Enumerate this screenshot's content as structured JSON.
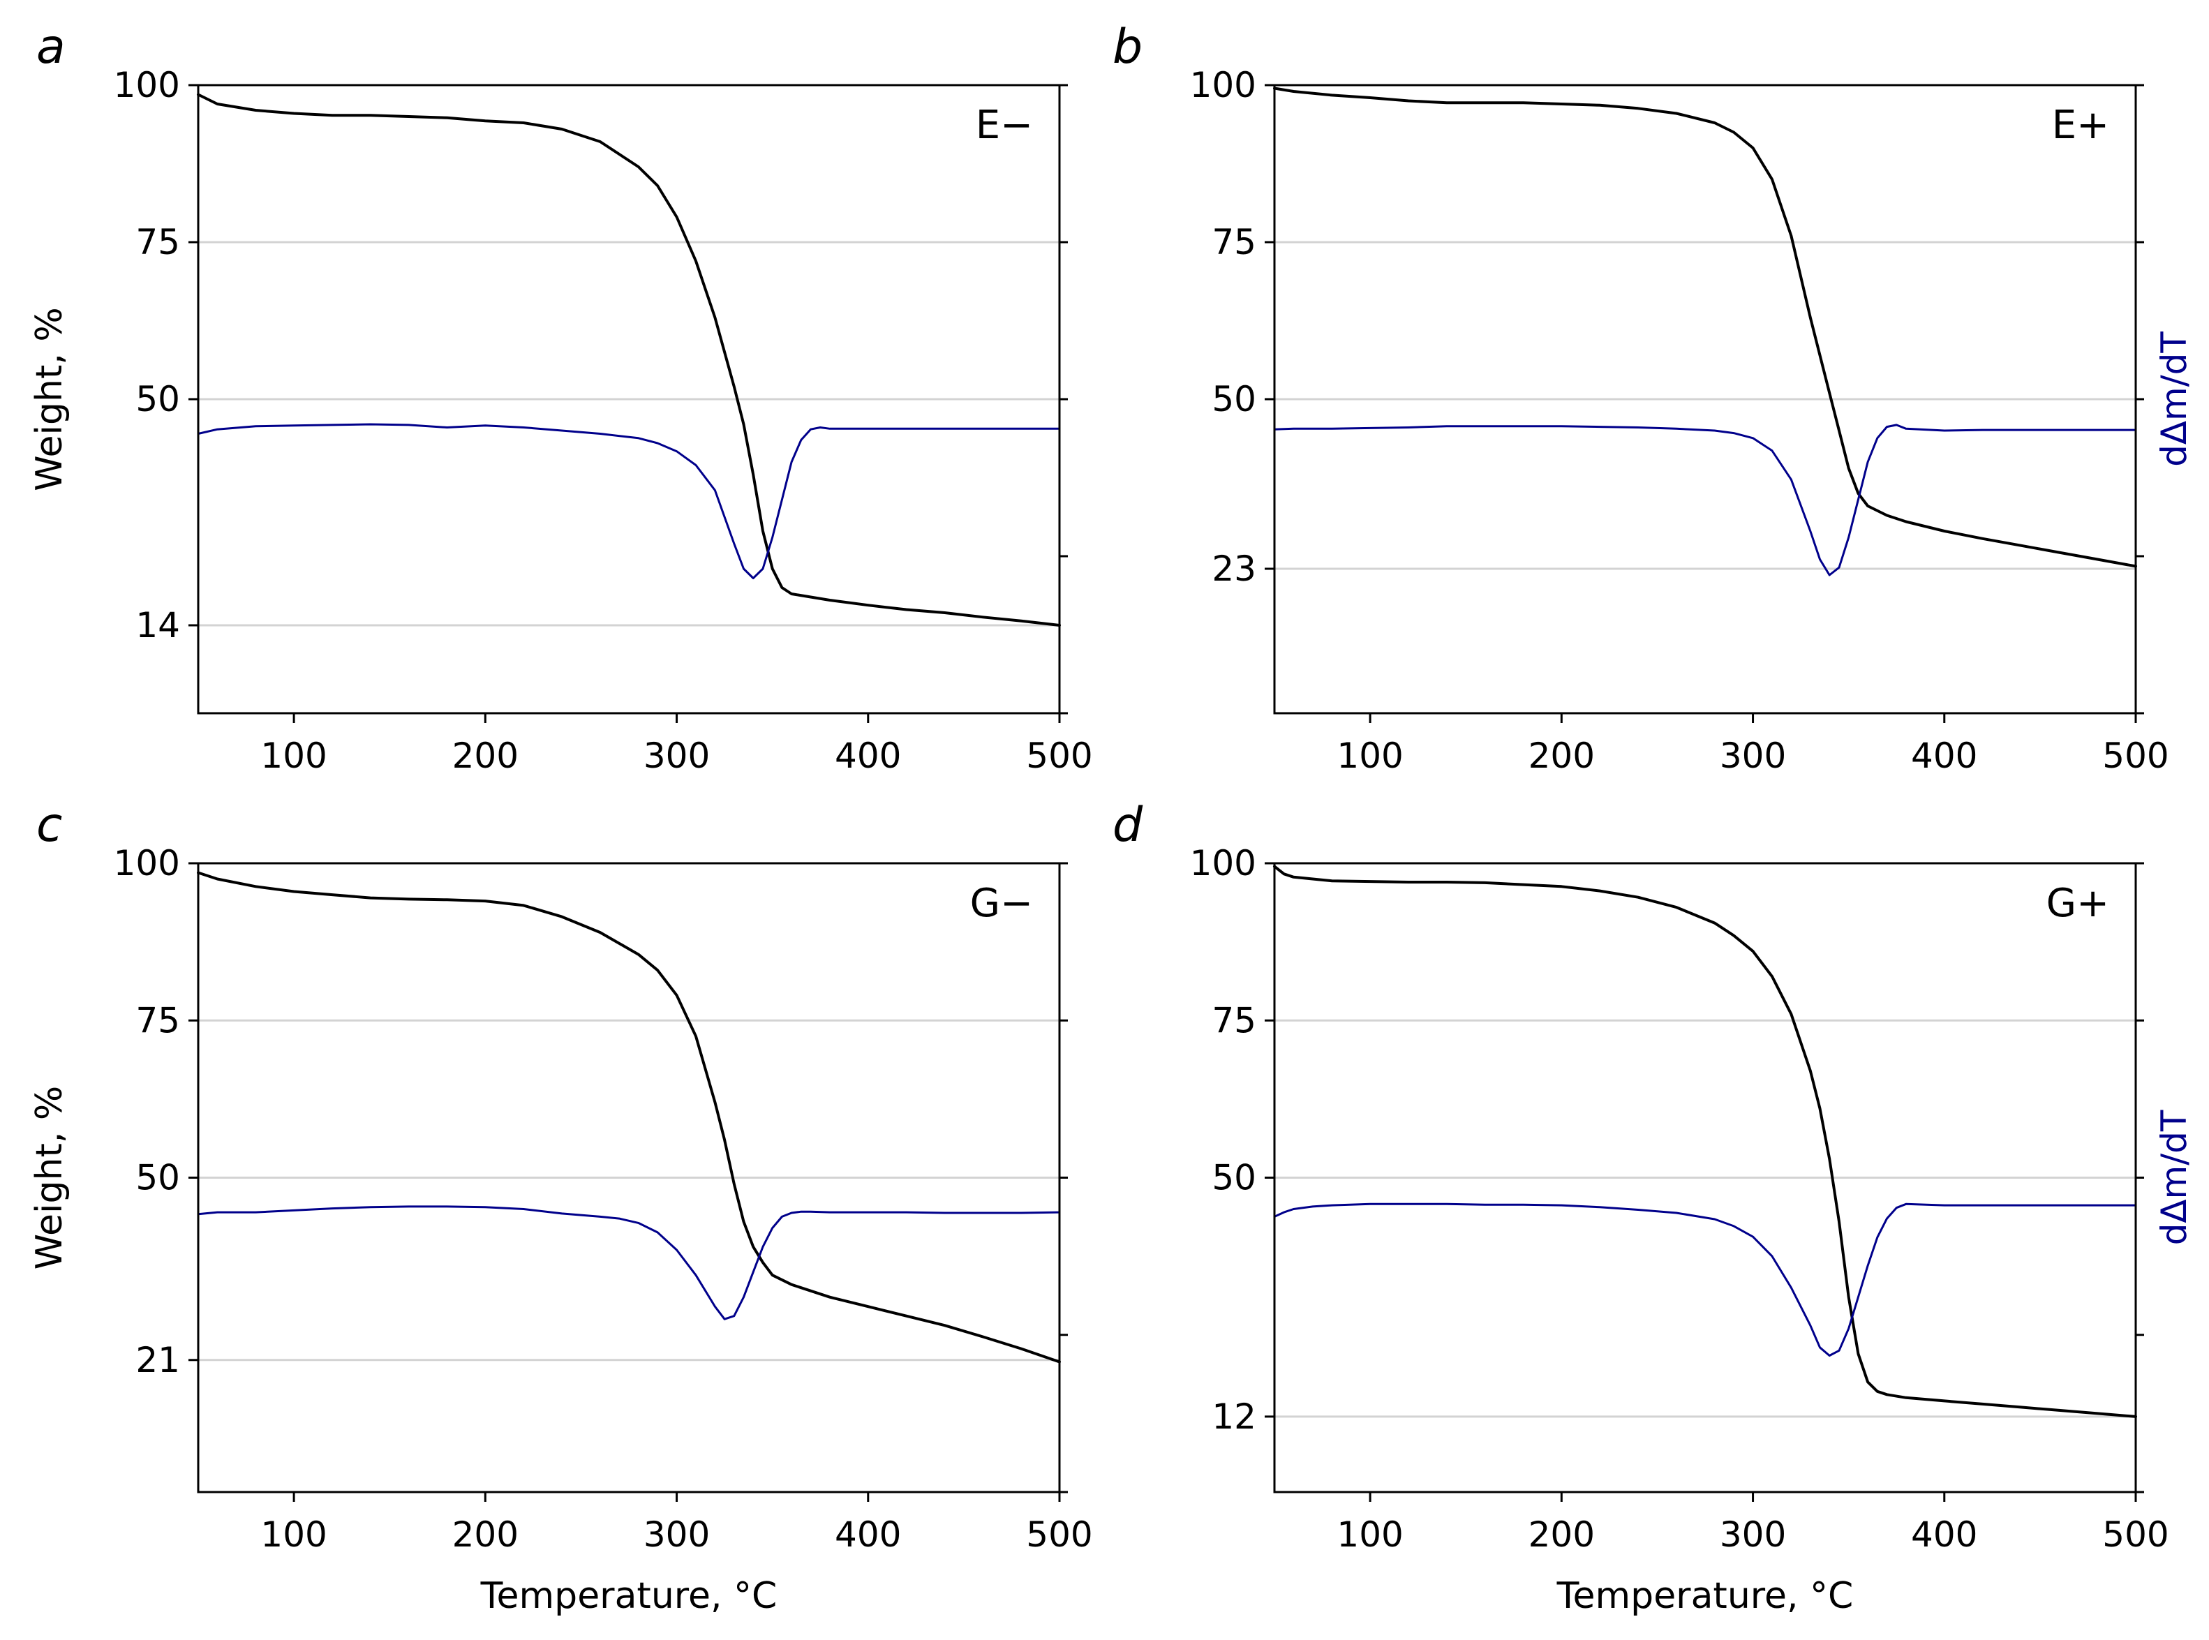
{
  "figure": {
    "axis_color": "#000000",
    "grid_color": "#d3d3d3",
    "weight_color": "#000000",
    "derivative_color": "#00008b"
  },
  "chart_data": [
    {
      "type": "line",
      "panel_label": "a",
      "annotation": "E−",
      "xlabel": "",
      "ylabel": "Weight, %",
      "y2label": "",
      "xlim": [
        50,
        500
      ],
      "ylim": [
        0,
        100
      ],
      "xticks": [
        100,
        200,
        300,
        400,
        500
      ],
      "yticks": [
        100,
        75,
        50,
        14
      ],
      "grid": true,
      "series": [
        {
          "name": "Weight",
          "axis": "left",
          "x": [
            50,
            60,
            80,
            100,
            120,
            140,
            160,
            180,
            200,
            220,
            240,
            260,
            280,
            290,
            300,
            310,
            320,
            330,
            335,
            340,
            345,
            350,
            355,
            360,
            370,
            380,
            400,
            420,
            440,
            460,
            480,
            500
          ],
          "y": [
            98.5,
            97,
            96,
            95.5,
            95.2,
            95.2,
            95,
            94.8,
            94.3,
            94,
            93,
            91,
            87,
            84,
            79,
            72,
            63,
            52,
            46,
            38,
            29,
            23,
            20,
            19,
            18.5,
            18,
            17.2,
            16.5,
            16,
            15.3,
            14.7,
            14
          ]
        },
        {
          "name": "dΔm/dT",
          "axis": "right",
          "x": [
            50,
            60,
            80,
            100,
            120,
            140,
            160,
            180,
            200,
            220,
            240,
            260,
            280,
            290,
            300,
            310,
            320,
            330,
            335,
            340,
            345,
            350,
            355,
            360,
            365,
            370,
            375,
            380,
            400,
            420,
            440,
            460,
            480,
            500
          ],
          "y": [
            44.5,
            45.2,
            45.7,
            45.8,
            45.9,
            46,
            45.9,
            45.5,
            45.8,
            45.5,
            45,
            44.5,
            43.8,
            43,
            41.7,
            39.5,
            35.5,
            27,
            23,
            21.5,
            23,
            28,
            34,
            40,
            43.5,
            45.2,
            45.5,
            45.3,
            45.3,
            45.3,
            45.3,
            45.3,
            45.3,
            45.3
          ]
        }
      ]
    },
    {
      "type": "line",
      "panel_label": "b",
      "annotation": "E+",
      "xlabel": "",
      "ylabel": "",
      "y2label": "dΔm/dT",
      "xlim": [
        50,
        500
      ],
      "ylim": [
        0,
        100
      ],
      "xticks": [
        100,
        200,
        300,
        400,
        500
      ],
      "yticks": [
        100,
        75,
        50,
        23
      ],
      "grid": true,
      "series": [
        {
          "name": "Weight",
          "axis": "left",
          "x": [
            50,
            60,
            80,
            100,
            120,
            140,
            160,
            180,
            200,
            220,
            240,
            260,
            280,
            290,
            300,
            310,
            320,
            330,
            335,
            340,
            345,
            350,
            355,
            360,
            370,
            380,
            400,
            420,
            440,
            460,
            480,
            500
          ],
          "y": [
            99.5,
            99,
            98.4,
            98,
            97.5,
            97.2,
            97.2,
            97.2,
            97,
            96.8,
            96.3,
            95.5,
            94,
            92.5,
            90,
            85,
            76,
            63,
            57,
            51,
            45,
            39,
            35,
            33,
            31.5,
            30.5,
            29,
            27.8,
            26.7,
            25.6,
            24.5,
            23.4
          ]
        },
        {
          "name": "dΔm/dT",
          "axis": "right",
          "x": [
            50,
            60,
            80,
            100,
            120,
            140,
            160,
            180,
            200,
            220,
            240,
            260,
            280,
            290,
            300,
            310,
            320,
            330,
            335,
            340,
            345,
            350,
            355,
            360,
            365,
            370,
            375,
            380,
            400,
            420,
            440,
            460,
            480,
            500
          ],
          "y": [
            45.2,
            45.3,
            45.3,
            45.4,
            45.5,
            45.7,
            45.7,
            45.7,
            45.7,
            45.6,
            45.5,
            45.3,
            45,
            44.6,
            43.8,
            41.8,
            37.2,
            29,
            24.5,
            22,
            23.2,
            28,
            34,
            40,
            43.8,
            45.6,
            45.9,
            45.3,
            45,
            45.1,
            45.1,
            45.1,
            45.1,
            45.1
          ]
        }
      ]
    },
    {
      "type": "line",
      "panel_label": "c",
      "annotation": "G−",
      "xlabel": "Temperature, °C",
      "ylabel": "Weight, %",
      "y2label": "",
      "xlim": [
        50,
        500
      ],
      "ylim": [
        0,
        100
      ],
      "xticks": [
        100,
        200,
        300,
        400,
        500
      ],
      "yticks": [
        100,
        75,
        50,
        21
      ],
      "grid": true,
      "series": [
        {
          "name": "Weight",
          "axis": "left",
          "x": [
            50,
            60,
            80,
            100,
            120,
            140,
            160,
            180,
            200,
            220,
            240,
            260,
            280,
            290,
            300,
            310,
            320,
            325,
            330,
            335,
            340,
            345,
            350,
            360,
            370,
            380,
            400,
            420,
            440,
            460,
            480,
            500
          ],
          "y": [
            98.5,
            97.5,
            96.3,
            95.5,
            95,
            94.5,
            94.3,
            94.2,
            94,
            93.3,
            91.5,
            89,
            85.5,
            83,
            79,
            72.5,
            62,
            56,
            49,
            43,
            39,
            36.5,
            34.5,
            33,
            32,
            31,
            29.5,
            28,
            26.5,
            24.7,
            22.8,
            20.7
          ]
        },
        {
          "name": "dΔm/dT",
          "axis": "right",
          "x": [
            50,
            60,
            80,
            100,
            120,
            140,
            160,
            180,
            200,
            220,
            240,
            260,
            270,
            280,
            290,
            300,
            310,
            315,
            320,
            325,
            330,
            335,
            340,
            345,
            350,
            355,
            360,
            365,
            370,
            380,
            400,
            420,
            440,
            460,
            480,
            500
          ],
          "y": [
            44.2,
            44.5,
            44.5,
            44.8,
            45.1,
            45.3,
            45.4,
            45.4,
            45.3,
            45,
            44.3,
            43.8,
            43.5,
            42.8,
            41.3,
            38.5,
            34.5,
            32,
            29.5,
            27.5,
            28,
            31,
            35,
            39,
            42,
            43.8,
            44.4,
            44.6,
            44.6,
            44.5,
            44.5,
            44.5,
            44.4,
            44.4,
            44.4,
            44.5
          ]
        }
      ]
    },
    {
      "type": "line",
      "panel_label": "d",
      "annotation": "G+",
      "xlabel": "Temperature, °C",
      "ylabel": "",
      "y2label": "dΔm/dT",
      "xlim": [
        50,
        500
      ],
      "ylim": [
        0,
        100
      ],
      "xticks": [
        100,
        200,
        300,
        400,
        500
      ],
      "yticks": [
        100,
        75,
        50,
        12
      ],
      "grid": true,
      "series": [
        {
          "name": "Weight",
          "axis": "left",
          "x": [
            50,
            55,
            60,
            70,
            80,
            100,
            120,
            140,
            160,
            180,
            200,
            220,
            240,
            260,
            280,
            290,
            300,
            310,
            320,
            330,
            335,
            340,
            345,
            350,
            355,
            360,
            365,
            370,
            380,
            400,
            420,
            440,
            460,
            480,
            500
          ],
          "y": [
            99.5,
            98.3,
            97.8,
            97.5,
            97.2,
            97.1,
            97,
            97,
            96.9,
            96.6,
            96.3,
            95.6,
            94.6,
            93,
            90.5,
            88.5,
            86,
            82,
            76,
            67,
            61,
            53,
            43,
            31,
            22,
            17.5,
            16,
            15.5,
            15,
            14.5,
            14,
            13.5,
            13,
            12.5,
            12
          ]
        },
        {
          "name": "dΔm/dT",
          "axis": "right",
          "x": [
            50,
            55,
            60,
            70,
            80,
            100,
            120,
            140,
            160,
            180,
            200,
            220,
            240,
            260,
            280,
            290,
            300,
            310,
            320,
            330,
            335,
            340,
            345,
            350,
            355,
            360,
            365,
            370,
            375,
            380,
            400,
            420,
            440,
            460,
            480,
            500
          ],
          "y": [
            43.8,
            44.5,
            45,
            45.4,
            45.6,
            45.8,
            45.8,
            45.8,
            45.7,
            45.7,
            45.6,
            45.3,
            44.9,
            44.4,
            43.4,
            42.3,
            40.6,
            37.5,
            32.5,
            26.5,
            23,
            21.7,
            22.5,
            26,
            31,
            36,
            40.5,
            43.5,
            45.2,
            45.8,
            45.6,
            45.6,
            45.6,
            45.6,
            45.6,
            45.6
          ]
        }
      ]
    }
  ]
}
